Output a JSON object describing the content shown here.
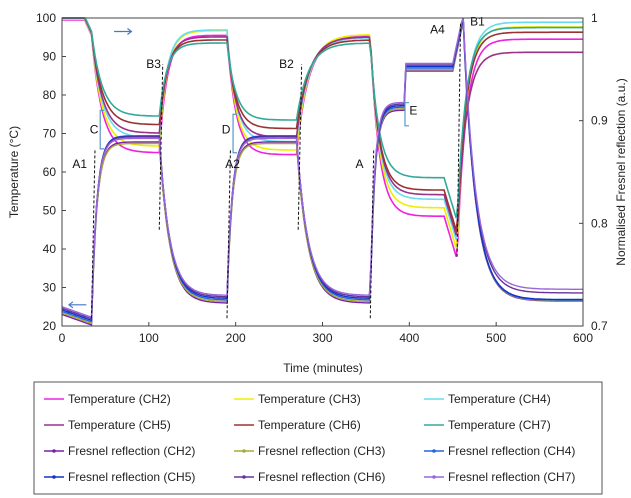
{
  "chart_data": {
    "type": "line",
    "title": "",
    "xlabel": "Time (minutes)",
    "ylabel": "Temperature (°C)",
    "y2label": "Normalised  Fresnel reflection (a.u.)",
    "xlim": [
      0,
      600
    ],
    "ylim": [
      20,
      100
    ],
    "y2lim": [
      0.7,
      1.0
    ],
    "xticks": [
      "0",
      "100",
      "200",
      "300",
      "400",
      "500",
      "600"
    ],
    "yticks": [
      "20",
      "30",
      "40",
      "50",
      "60",
      "70",
      "80",
      "90",
      "100"
    ],
    "y2ticks": [
      "0.7",
      "0.8",
      "0.9",
      "1"
    ],
    "grid": false,
    "legend_position": "bottom",
    "annotations": [
      {
        "text": "A1",
        "x": 12,
        "y": 61
      },
      {
        "text": "A2",
        "x": 188,
        "y": 61
      },
      {
        "text": "A",
        "x": 338,
        "y": 61
      },
      {
        "text": "A4",
        "x": 424,
        "y": 96
      },
      {
        "text": "B3",
        "x": 97,
        "y": 87
      },
      {
        "text": "B2",
        "x": 250,
        "y": 87
      },
      {
        "text": "B1",
        "x": 470,
        "y": 98
      },
      {
        "text": "C",
        "x": 32,
        "y": 70
      },
      {
        "text": "D",
        "x": 184,
        "y": 70
      },
      {
        "text": "E",
        "x": 400,
        "y": 75
      }
    ],
    "legend": [
      "Temperature (CH2)",
      "Temperature (CH3)",
      "Temperature (CH4)",
      "Temperature (CH5)",
      "Temperature (CH6)",
      "Temperature (CH7)",
      "Fresnel reflection (CH2)",
      "Fresnel reflection (CH3)",
      "Fresnel reflection (CH4)",
      "Fresnel reflection (CH5)",
      "Fresnel reflection (CH6)",
      "Fresnel reflection (CH7)"
    ],
    "legend_colors": [
      "#ee22dd",
      "#eeee00",
      "#66ddee",
      "#993388",
      "#993333",
      "#33aa99",
      "#7722aa",
      "#aaaa33",
      "#2266dd",
      "#1133cc",
      "#663399",
      "#9966dd"
    ],
    "temperature_series": [
      {
        "name": "Temperature (CH2)",
        "color": "#ee22dd",
        "plateaus": [
          65.5,
          65,
          96,
          37,
          95
        ],
        "peaks": [
          96,
          95,
          96,
          37,
          95
        ]
      },
      {
        "name": "Temperature (CH3)",
        "color": "#eeee00",
        "plateaus": [
          67,
          66,
          96,
          39,
          98
        ],
        "peaks": [
          97,
          96,
          96,
          39,
          98
        ]
      },
      {
        "name": "Temperature (CH4)",
        "color": "#66ddee",
        "plateaus": [
          69,
          68,
          95,
          41,
          99
        ],
        "peaks": [
          97,
          96,
          95,
          41,
          99
        ]
      },
      {
        "name": "Temperature (CH5)",
        "color": "#993388",
        "plateaus": [
          70,
          69,
          95,
          42,
          91
        ],
        "peaks": [
          95,
          95,
          95,
          42,
          91
        ]
      },
      {
        "name": "Temperature (CH6)",
        "color": "#993333",
        "plateaus": [
          72,
          71,
          94,
          43,
          96
        ],
        "peaks": [
          94,
          94,
          94,
          43,
          96
        ]
      },
      {
        "name": "Temperature (CH7)",
        "color": "#33aa99",
        "plateaus": [
          74,
          73,
          93,
          46,
          97
        ],
        "peaks": [
          93,
          92,
          93,
          46,
          97
        ]
      }
    ],
    "reflection_series": [
      {
        "name": "Fresnel reflection (CH2)",
        "color": "#7722aa",
        "plateau": 0.883,
        "final": 0.728
      },
      {
        "name": "Fresnel reflection (CH3)",
        "color": "#aaaa33",
        "plateau": 0.88,
        "final": 0.727
      },
      {
        "name": "Fresnel reflection (CH4)",
        "color": "#2266dd",
        "plateau": 0.886,
        "final": 0.726
      },
      {
        "name": "Fresnel reflection (CH5)",
        "color": "#1133cc",
        "plateau": 0.884,
        "final": 0.725
      },
      {
        "name": "Fresnel reflection (CH6)",
        "color": "#663399",
        "plateau": 0.882,
        "final": 0.73
      },
      {
        "name": "Fresnel reflection (CH7)",
        "color": "#9966dd",
        "plateau": 0.879,
        "final": 0.732
      }
    ]
  }
}
